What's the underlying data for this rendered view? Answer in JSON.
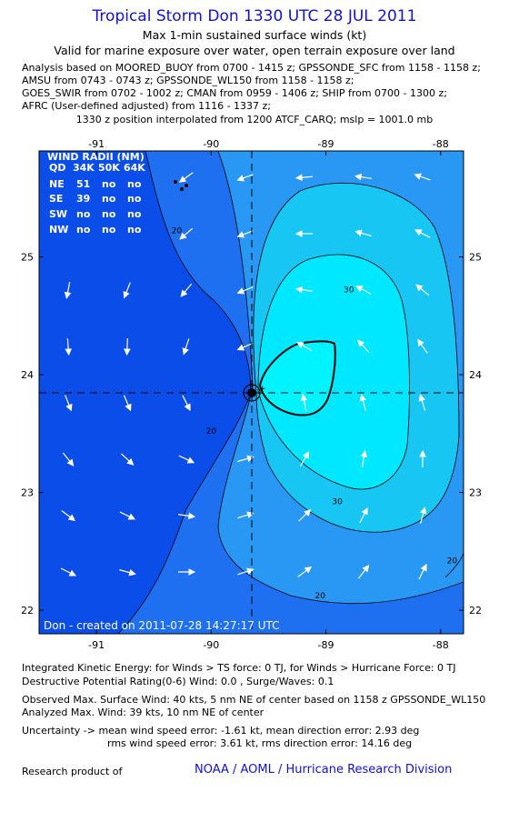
{
  "header": {
    "title": "Tropical Storm Don 1330 UTC 28 JUL 2011",
    "subtitle1": "Max 1-min sustained surface winds (kt)",
    "subtitle2": "Valid for marine exposure over water, open terrain exposure over land",
    "sources": [
      "Analysis based on MOORED_BUOY from 0700 - 1415 z; GPSSONDE_SFC from 1158 - 1158 z;",
      "AMSU from 0743 - 0743 z; GPSSONDE_WL150 from 1158 - 1158 z;",
      "GOES_SWIR from 0702 - 1002 z; CMAN from 0959 - 1406 z; SHIP from 0700 - 1300 z;",
      "AFRC (User-defined adjusted) from 1116 - 1337 z;"
    ],
    "position_line": "1330 z position interpolated from 1200 ATCF_CARQ; mslp = 1001.0 mb"
  },
  "chart_data": {
    "type": "contour",
    "xlim": [
      -91.5,
      -87.8
    ],
    "ylim": [
      21.8,
      25.9
    ],
    "x_ticks": [
      -91,
      -90,
      -89,
      -88
    ],
    "x_tick_labels": [
      "-91",
      "-90",
      "-89",
      "-88"
    ],
    "y_ticks": [
      22,
      23,
      24,
      25
    ],
    "y_tick_labels": [
      "22",
      "23",
      "24",
      "25"
    ],
    "center": {
      "lon": -89.67,
      "lat": 23.83
    },
    "contour_levels": [
      20,
      30,
      34
    ],
    "contour_labels": [
      {
        "text": "20",
        "lon": -90.3,
        "lat": 25.2
      },
      {
        "text": "20",
        "lon": -90.0,
        "lat": 23.5
      },
      {
        "text": "30",
        "lon": -88.8,
        "lat": 24.7
      },
      {
        "text": "30",
        "lon": -88.9,
        "lat": 22.9
      },
      {
        "text": "20",
        "lon": -89.05,
        "lat": 22.1
      },
      {
        "text": "20",
        "lon": -87.9,
        "lat": 22.4
      }
    ],
    "fill_colors": [
      "#0a4de8",
      "#1e70f0",
      "#2898f4",
      "#18c6f4",
      "#00e8ff"
    ],
    "vector_color": "#ffffff",
    "wind_radii": {
      "title": "WIND RADII (NM)",
      "header": [
        "QD",
        "34K",
        "50K",
        "64K"
      ],
      "rows": [
        [
          "NE",
          "51",
          "no",
          "no"
        ],
        [
          "SE",
          "39",
          "no",
          "no"
        ],
        [
          "SW",
          "no",
          "no",
          "no"
        ],
        [
          "NW",
          "no",
          "no",
          "no"
        ]
      ]
    },
    "credit": "Don - created on 2011-07-28 14:27:17 UTC"
  },
  "footer": {
    "ike": "Integrated Kinetic Energy:  for Winds > TS force: 0 TJ,  for Winds > Hurricane Force: 0 TJ",
    "dpr": "Destructive Potential Rating(0-6)   Wind: 0.0 , Surge/Waves: 0.1",
    "observed": "Observed Max. Surface Wind: 40 kts, 5 nm NE of center based on 1158 z GPSSONDE_WL150",
    "analyzed": "Analyzed Max. Wind: 39 kts, 10 nm NE of center",
    "uncertainty1": "Uncertainty -> mean wind speed error:  -1.61 kt,   mean direction error: 2.93 deg",
    "uncertainty2": "rms wind speed error: 3.61 kt,   rms direction error: 14.16 deg",
    "research": "Research product of",
    "noaa": "NOAA / AOML / Hurricane Research Division"
  }
}
